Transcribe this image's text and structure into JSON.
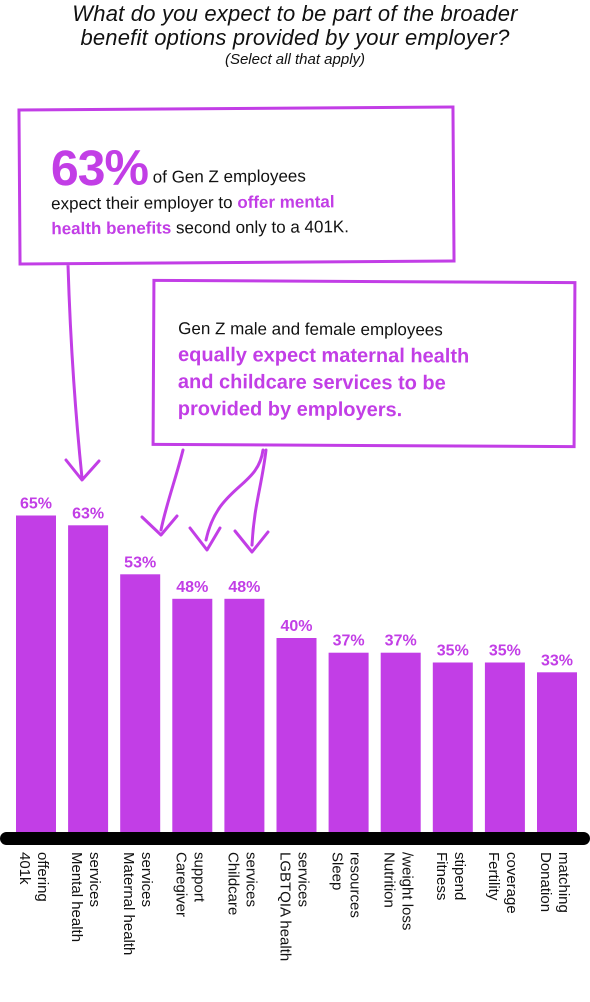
{
  "header": {
    "title_line1": "What do you expect to be part of the broader",
    "title_line2": "benefit options provided by your employer?",
    "subtitle": "(Select all that apply)"
  },
  "callout1": {
    "big": "63%",
    "t1": "of Gen Z employees",
    "t2": "expect their employer to",
    "hl1": "offer mental",
    "hl2": "health benefits",
    "t3": "second only to a 401K."
  },
  "callout2": {
    "t1": "Gen Z male and female employees",
    "hl1": "equally expect maternal health",
    "hl2": "and childcare services to be",
    "hl3": "provided by employers."
  },
  "colors": {
    "bar": "#c23ee6",
    "accent": "#c23ee6",
    "baseline": "#000000"
  },
  "chart_data": {
    "type": "bar",
    "title": "What do you expect to be part of the broader benefit options provided by your employer?",
    "subtitle": "(Select all that apply)",
    "categories": [
      [
        "401k",
        "offering"
      ],
      [
        "Mental health",
        "services"
      ],
      [
        "Maternal health",
        "services"
      ],
      [
        "Caregiver",
        "support"
      ],
      [
        "Childcare",
        "services"
      ],
      [
        "LGBTQIA health",
        "services"
      ],
      [
        "Sleep",
        "resources"
      ],
      [
        "Nutrition",
        "/weight loss"
      ],
      [
        "Fitness",
        "stipend"
      ],
      [
        "Fertility",
        "coverage"
      ],
      [
        "Donation",
        "matching"
      ]
    ],
    "values": [
      65,
      63,
      53,
      48,
      48,
      40,
      37,
      37,
      35,
      35,
      33
    ],
    "value_labels": [
      "65%",
      "63%",
      "53%",
      "48%",
      "48%",
      "40%",
      "37%",
      "37%",
      "35%",
      "35%",
      "33%"
    ],
    "ylim": [
      0,
      100
    ],
    "grid": false
  }
}
